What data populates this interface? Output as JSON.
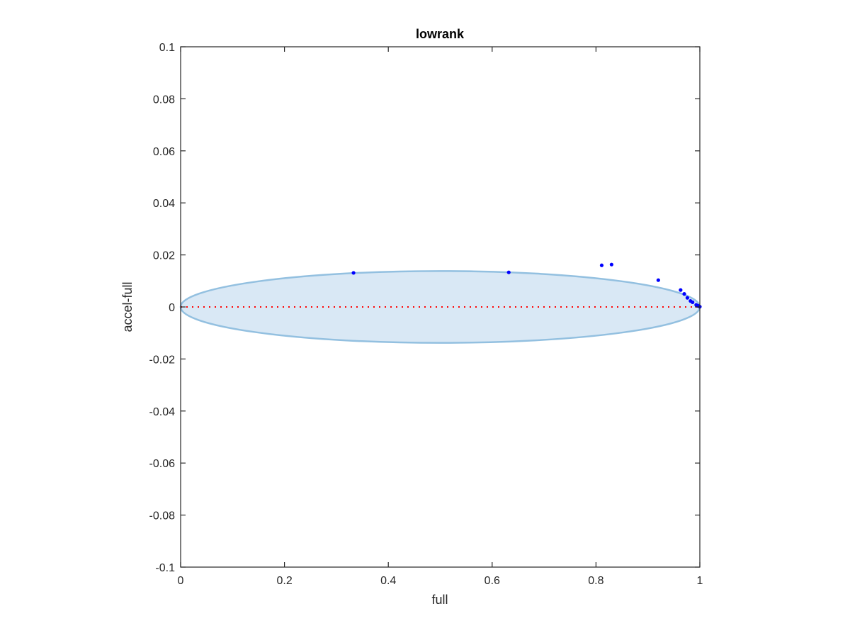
{
  "chart_data": {
    "type": "scatter",
    "title": "lowrank",
    "xlabel": "full",
    "ylabel": "accel-full",
    "xlim": [
      0,
      1
    ],
    "ylim": [
      -0.1,
      0.1
    ],
    "x_ticks": [
      0,
      0.2,
      0.4,
      0.6,
      0.8,
      1
    ],
    "x_tick_labels": [
      "0",
      "0.2",
      "0.4",
      "0.6",
      "0.8",
      "1"
    ],
    "y_ticks": [
      0.1,
      0.08,
      0.06,
      0.04,
      0.02,
      0,
      -0.02,
      -0.04,
      -0.06,
      -0.08,
      -0.1
    ],
    "y_tick_labels": [
      "0.1",
      "0.08",
      "0.06",
      "0.04",
      "0.02",
      "0",
      "-0.02",
      "-0.04",
      "-0.06",
      "-0.08",
      "-0.1"
    ],
    "grid": false,
    "region": {
      "shape": "ellipse",
      "center": [
        0.5,
        0
      ],
      "semi_axes": [
        0.5,
        0.0138
      ],
      "fill": "#d9e8f5",
      "stroke": "#93c0e0"
    },
    "reference_line": {
      "y": 0,
      "style": "dotted",
      "color": "#ff0000"
    },
    "series": [
      {
        "color": "#0000ff",
        "points": [
          [
            0.333,
            0.0131
          ],
          [
            0.632,
            0.0133
          ],
          [
            0.811,
            0.016
          ],
          [
            0.83,
            0.0163
          ],
          [
            0.92,
            0.0103
          ],
          [
            0.963,
            0.0065
          ],
          [
            0.97,
            0.005
          ],
          [
            0.976,
            0.0035
          ],
          [
            0.982,
            0.0023
          ],
          [
            0.986,
            0.0018
          ],
          [
            0.993,
            0.0008
          ],
          [
            0.996,
            0.0005
          ],
          [
            0.998,
            0.0003
          ],
          [
            1.0,
            0.0001
          ]
        ]
      }
    ]
  }
}
